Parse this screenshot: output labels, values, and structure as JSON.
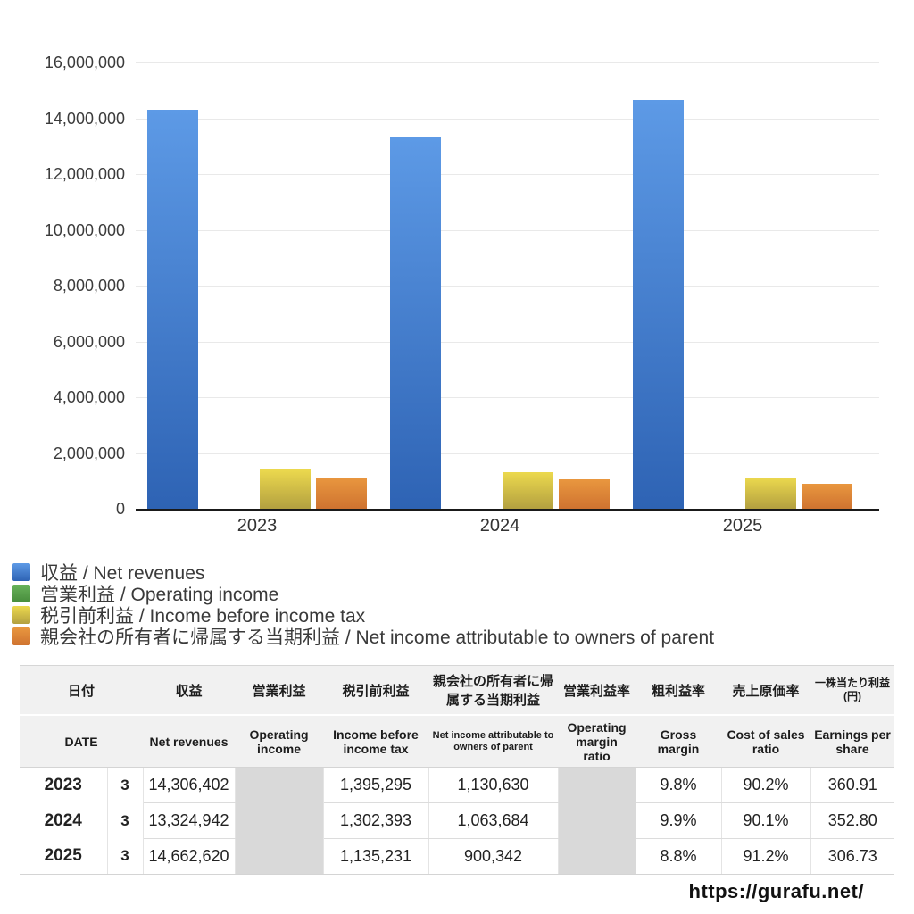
{
  "chart_data": {
    "type": "bar",
    "title": "",
    "categories": [
      "2023",
      "2024",
      "2025"
    ],
    "series": [
      {
        "name": "収益 / Net revenues",
        "values": [
          14306402,
          13324942,
          14662620
        ],
        "color_top": "#5d9ae6",
        "color_bottom": "#2e63b4"
      },
      {
        "name": "営業利益 / Operating income",
        "values": [
          null,
          null,
          null
        ],
        "color_top": "#68b35a",
        "color_bottom": "#478c3c"
      },
      {
        "name": "税引前利益 / Income before income tax",
        "values": [
          1395295,
          1302393,
          1135231
        ],
        "color_top": "#ecd94e",
        "color_bottom": "#b3a040"
      },
      {
        "name": "親会社の所有者に帰属する当期利益 / Net income attributable to owners of parent",
        "values": [
          1130630,
          1063684,
          900342
        ],
        "color_top": "#e9973f",
        "color_bottom": "#cf7330"
      }
    ],
    "ylim": [
      0,
      16000000
    ],
    "ytick_step": 2000000,
    "ytick_labels": [
      "0",
      "2,000,000",
      "4,000,000",
      "6,000,000",
      "8,000,000",
      "10,000,000",
      "12,000,000",
      "14,000,000",
      "16,000,000"
    ],
    "grid": true,
    "legend_position": "bottom-left"
  },
  "table": {
    "header_jp": [
      "日付",
      "収益",
      "営業利益",
      "税引前利益",
      "親会社の所有者に帰属する当期利益",
      "営業利益率",
      "粗利益率",
      "売上原価率",
      "一株当たり利益(円)"
    ],
    "header_en": [
      "DATE",
      "Net revenues",
      "Operating income",
      "Income before income tax",
      "Net income attributable to owners of parent",
      "Operating margin ratio",
      "Gross margin",
      "Cost of sales ratio",
      "Earnings per share"
    ],
    "rows": [
      [
        "2023",
        "3",
        "14,306,402",
        "",
        "1,395,295",
        "1,130,630",
        "",
        "9.8%",
        "90.2%",
        "360.91"
      ],
      [
        "2024",
        "3",
        "13,324,942",
        "",
        "1,302,393",
        "1,063,684",
        "",
        "9.9%",
        "90.1%",
        "352.80"
      ],
      [
        "2025",
        "3",
        "14,662,620",
        "",
        "1,135,231",
        "900,342",
        "",
        "8.8%",
        "91.2%",
        "306.73"
      ]
    ],
    "blank_columns": [
      3,
      6
    ]
  },
  "footer": {
    "url": "https://gurafu.net/"
  },
  "colors": {
    "axis_line": "#1a1a1a",
    "gridline": "#e9e9e9",
    "header_bg": "#f1f1f1",
    "blank_cell_bg": "#d9d9d9"
  }
}
